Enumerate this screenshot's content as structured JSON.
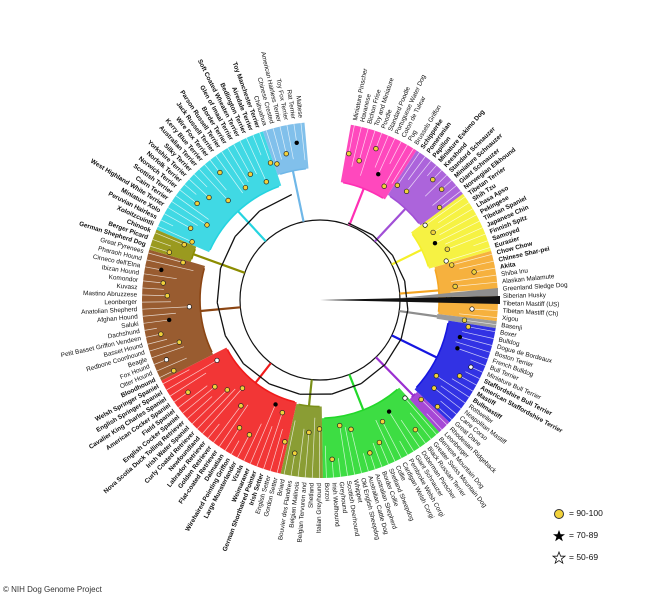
{
  "credit": "© NIH Dog Genome Project",
  "legend": {
    "items": [
      {
        "label": "= 90-100",
        "symbol": "circle",
        "color": "#f2d23a"
      },
      {
        "label": "= 70-89",
        "symbol": "filled-star",
        "color": "#000000"
      },
      {
        "label": "= 50-69",
        "symbol": "open-star",
        "color": "#ffffff"
      }
    ]
  },
  "clades": [
    {
      "color": "#ff2fb4",
      "leaves": [
        {
          "label": "Miniature Pinscher",
          "bold": false
        },
        {
          "label": "Havanese",
          "bold": false
        },
        {
          "label": "Bichon Frise",
          "bold": false
        },
        {
          "label": "Toy and Miniature",
          "bold": false
        },
        {
          "label": "Poodle",
          "bold": false
        },
        {
          "label": "Standard Poodle",
          "bold": false
        },
        {
          "label": "Portuguese Water Dog",
          "bold": false
        },
        {
          "label": "Coton de Tulear",
          "bold": false
        },
        {
          "label": "Pug",
          "bold": false
        },
        {
          "label": "Brussels Griffon",
          "bold": false
        }
      ]
    },
    {
      "color": "#a14fd6",
      "leaves": [
        {
          "label": "Schipperke",
          "bold": true
        },
        {
          "label": "Pomeranian",
          "bold": true
        },
        {
          "label": "Papillon",
          "bold": true
        },
        {
          "label": "Miniature Eskimo Dog",
          "bold": true
        },
        {
          "label": "Keeshond",
          "bold": true
        },
        {
          "label": "Standard Schnauzer",
          "bold": true
        },
        {
          "label": "Miniature Schnauzer",
          "bold": true
        },
        {
          "label": "Giant Schnauzer",
          "bold": true
        },
        {
          "label": "Norwegian Elkhound",
          "bold": true
        }
      ]
    },
    {
      "color": "#f5f029",
      "leaves": [
        {
          "label": "Tibetan Terrier",
          "bold": true
        },
        {
          "label": "Shih Tzu",
          "bold": true
        },
        {
          "label": "Lhasa Apso",
          "bold": true
        },
        {
          "label": "Pekingese",
          "bold": true
        },
        {
          "label": "Tibetan Spaniel",
          "bold": true
        },
        {
          "label": "Japanese Chin",
          "bold": true
        },
        {
          "label": "Finnish Spitz",
          "bold": true
        },
        {
          "label": "Samoyed",
          "bold": true
        },
        {
          "label": "Eurasier",
          "bold": true
        }
      ]
    },
    {
      "color": "#f5a623",
      "leaves": [
        {
          "label": "Chow Chow",
          "bold": true
        },
        {
          "label": "Chinese Shar-pei",
          "bold": true
        },
        {
          "label": "Akita",
          "bold": true
        },
        {
          "label": "Shiba Inu",
          "bold": false
        },
        {
          "label": "Alaskan Malamute",
          "bold": false
        },
        {
          "label": "Greenland Sledge Dog",
          "bold": false
        },
        {
          "label": "Siberian Husky",
          "bold": false
        },
        {
          "label": "Tibetan Mastiff (US)",
          "bold": false
        },
        {
          "label": "Tibetan Mastiff (Ch)",
          "bold": false
        },
        {
          "label": "Xigou",
          "bold": false
        }
      ]
    },
    {
      "color": "#8e8e8e",
      "leaves": [
        {
          "label": "Basenji",
          "bold": false
        }
      ]
    },
    {
      "color": "#1616e0",
      "leaves": [
        {
          "label": "Boxer",
          "bold": false
        },
        {
          "label": "Bulldog",
          "bold": false
        },
        {
          "label": "Dogue de Bordeaux",
          "bold": false
        },
        {
          "label": "Boston Terrier",
          "bold": false
        },
        {
          "label": "French Bulldog",
          "bold": false
        },
        {
          "label": "Bull Terrier",
          "bold": false
        },
        {
          "label": "Miniature Bull Terrier",
          "bold": false
        },
        {
          "label": "Staffordshire Bull Terrier",
          "bold": true
        },
        {
          "label": "American Staffordshire Terrier",
          "bold": true
        },
        {
          "label": "Mastiff",
          "bold": true
        },
        {
          "label": "Bullmastiff",
          "bold": true
        },
        {
          "label": "Rottweiler",
          "bold": false
        },
        {
          "label": "Neapolitan Mastiff",
          "bold": false
        },
        {
          "label": "Cane Corso",
          "bold": false
        },
        {
          "label": "Great Dane",
          "bold": false
        }
      ]
    },
    {
      "color": "#9a2fd0",
      "leaves": [
        {
          "label": "Rhodesian Ridgeback",
          "bold": false
        },
        {
          "label": "Leonberger",
          "bold": false
        }
      ]
    },
    {
      "color": "#22d829",
      "leaves": [
        {
          "label": "Bernese Mountain Dog",
          "bold": false
        },
        {
          "label": "Greater Swiss Mountain Dog",
          "bold": false
        },
        {
          "label": "Black Russian Terrier",
          "bold": false
        },
        {
          "label": "Doberman Pinscher",
          "bold": false
        },
        {
          "label": "Giant Schnauzer",
          "bold": false
        },
        {
          "label": "Pembroke Welsh Corgi",
          "bold": false
        },
        {
          "label": "Cardigan Welsh Corgi",
          "bold": false
        },
        {
          "label": "Collie",
          "bold": false
        },
        {
          "label": "Shetland Sheepdog",
          "bold": false
        },
        {
          "label": "Border Collie",
          "bold": false
        },
        {
          "label": "Australian Shepherd",
          "bold": false
        },
        {
          "label": "Australian Cattle Dog",
          "bold": false
        },
        {
          "label": "Old English Sheepdog",
          "bold": false
        },
        {
          "label": "Whippet",
          "bold": false
        },
        {
          "label": "Scottish Deerhound",
          "bold": false
        },
        {
          "label": "Greyhound",
          "bold": false
        },
        {
          "label": "Irish Wolfhound",
          "bold": false
        },
        {
          "label": "Borzoi",
          "bold": false
        }
      ]
    },
    {
      "color": "#7a8f18",
      "leaves": [
        {
          "label": "Italian Greyhound",
          "bold": false
        },
        {
          "label": "Shetland",
          "bold": false
        },
        {
          "label": "Belgian Tervuren and",
          "bold": false
        },
        {
          "label": "Belgian Malinois",
          "bold": false
        },
        {
          "label": "Bouvier des Flandres",
          "bold": false
        },
        {
          "label": "Briard",
          "bold": false
        }
      ]
    },
    {
      "color": "#f01a1a",
      "leaves": [
        {
          "label": "Gordon Setter",
          "bold": false
        },
        {
          "label": "English Setter",
          "bold": false
        },
        {
          "label": "Irish Setter",
          "bold": true
        },
        {
          "label": "German Shorthaired Pointer",
          "bold": true
        },
        {
          "label": "Weimaraner",
          "bold": true
        },
        {
          "label": "Vizsla",
          "bold": true
        },
        {
          "label": "Large Munsterlander",
          "bold": true
        },
        {
          "label": "Wirehaired Pointing Griffon",
          "bold": true
        },
        {
          "label": "Dalmatian",
          "bold": true
        },
        {
          "label": "Flat-coated Retriever",
          "bold": true
        },
        {
          "label": "Golden Retriever",
          "bold": true
        },
        {
          "label": "Labrador Retriever",
          "bold": true
        },
        {
          "label": "Newfoundland",
          "bold": true
        },
        {
          "label": "Curly Coated Retriever",
          "bold": true
        },
        {
          "label": "Irish Water Spaniel",
          "bold": true
        },
        {
          "label": "Nova Scotia Duck Tolling Retriever",
          "bold": true
        },
        {
          "label": "English Cocker Spaniel",
          "bold": true
        },
        {
          "label": "Field Spaniel",
          "bold": true
        },
        {
          "label": "American Cocker Spaniel",
          "bold": true
        },
        {
          "label": "Cavalier King Charles Spaniel",
          "bold": true
        },
        {
          "label": "English Springer Spaniel",
          "bold": true
        },
        {
          "label": "Welsh Springer Spaniel",
          "bold": true
        }
      ]
    },
    {
      "color": "#8b4513",
      "leaves": [
        {
          "label": "Bloodhound",
          "bold": true
        },
        {
          "label": "Otter Hound",
          "bold": false
        },
        {
          "label": "Fox Hound",
          "bold": false
        },
        {
          "label": "Beagle",
          "bold": false
        },
        {
          "label": "Redbone Coonhound",
          "bold": false
        },
        {
          "label": "Basset Hound",
          "bold": false
        },
        {
          "label": "Petit Basset Griffon Vendeen",
          "bold": false
        },
        {
          "label": "Dachshund",
          "bold": false
        },
        {
          "label": "Saluki",
          "bold": false
        },
        {
          "label": "Afghan Hound",
          "bold": false
        },
        {
          "label": "Anatolian Shepherd",
          "bold": false
        },
        {
          "label": "Leonberger",
          "bold": false
        },
        {
          "label": "Mastino Abruzzese",
          "bold": false
        },
        {
          "label": "Kuvasz",
          "bold": false
        },
        {
          "label": "Komondor",
          "bold": false
        },
        {
          "label": "Ibizan Hound",
          "bold": false
        },
        {
          "label": "Cirneco dell'Etna",
          "bold": false
        },
        {
          "label": "Pharaoh Hound",
          "bold": false
        },
        {
          "label": "Great Pyrenees",
          "bold": false
        }
      ]
    },
    {
      "color": "#8c8c00",
      "leaves": [
        {
          "label": "German Shepherd Dog",
          "bold": true
        },
        {
          "label": "Berger Picard",
          "bold": true
        },
        {
          "label": "Chinook",
          "bold": true
        }
      ]
    },
    {
      "color": "#25d4e0",
      "leaves": [
        {
          "label": "Xoloitzcuintli",
          "bold": true
        },
        {
          "label": "Peruvian Hairless",
          "bold": true
        },
        {
          "label": "Miniature Xolo",
          "bold": true
        },
        {
          "label": "West Highland White Terrier",
          "bold": true
        },
        {
          "label": "Cairn Terrier",
          "bold": true
        },
        {
          "label": "Scottish Terrier",
          "bold": true
        },
        {
          "label": "Norwich Terrier",
          "bold": true
        },
        {
          "label": "Norfolk Terrier",
          "bold": true
        },
        {
          "label": "Yorkshire Terrier",
          "bold": true
        },
        {
          "label": "Silky Terrier",
          "bold": true
        },
        {
          "label": "Australian Terrier",
          "bold": true
        },
        {
          "label": "Kerry Blue Terrier",
          "bold": true
        },
        {
          "label": "Wire Fox Terrier",
          "bold": true
        },
        {
          "label": "Jack Russell Terrier",
          "bold": true
        },
        {
          "label": "Parson Russell Terrier",
          "bold": true
        },
        {
          "label": "Border Terrier",
          "bold": true
        },
        {
          "label": "Glen of Imaal Terrier",
          "bold": true
        },
        {
          "label": "Soft Coated Wheaten Terrier",
          "bold": true
        },
        {
          "label": "Bedlington Terrier",
          "bold": true
        },
        {
          "label": "Airedale Terrier",
          "bold": true
        },
        {
          "label": "Toy Manchester Terrier",
          "bold": true
        }
      ]
    },
    {
      "color": "#6fb7e8",
      "leaves": [
        {
          "label": "Chihuahua",
          "bold": false
        },
        {
          "label": "Chinese Crested",
          "bold": false
        },
        {
          "label": "American Hairless Terrier",
          "bold": false
        },
        {
          "label": "Toy Fox Terrier",
          "bold": false
        },
        {
          "label": "Rat Terrier",
          "bold": false
        },
        {
          "label": "Maltese",
          "bold": false
        }
      ]
    }
  ]
}
